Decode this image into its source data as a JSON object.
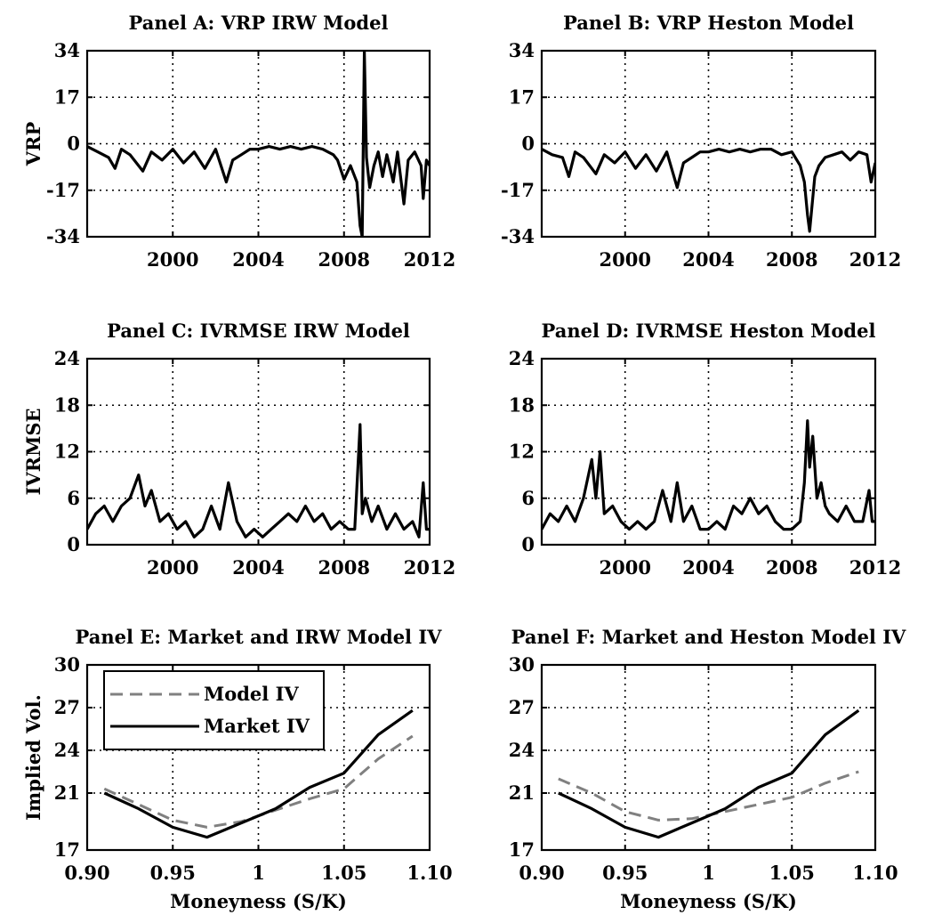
{
  "chart_data": [
    {
      "id": "A",
      "type": "line",
      "title": "Panel A: VRP IRW Model",
      "xlabel": "",
      "ylabel": "VRP",
      "xlim": [
        1996.0,
        2012.0
      ],
      "ylim": [
        -34,
        34
      ],
      "xticks": [
        2000,
        2004,
        2008,
        2012
      ],
      "xtick_labels": [
        "2000",
        "2004",
        "2008",
        "2012"
      ],
      "yticks": [
        -34,
        -17,
        0,
        17,
        34
      ],
      "ytick_labels": [
        "-34",
        "-17",
        "0",
        "17",
        "34"
      ],
      "grid": true,
      "legend": null,
      "series": [
        {
          "color": "#000000",
          "dash": "solid",
          "x": [
            1996.0,
            1996.5,
            1997.0,
            1997.3,
            1997.6,
            1998.0,
            1998.6,
            1999.0,
            1999.5,
            2000.0,
            2000.5,
            2001.0,
            2001.5,
            2002.0,
            2002.5,
            2002.8,
            2003.2,
            2003.6,
            2004.0,
            2004.5,
            2005.0,
            2005.5,
            2006.0,
            2006.5,
            2007.0,
            2007.5,
            2007.7,
            2008.0,
            2008.3,
            2008.6,
            2008.75,
            2008.85,
            2008.95,
            2009.05,
            2009.2,
            2009.4,
            2009.6,
            2009.8,
            2010.0,
            2010.3,
            2010.5,
            2010.8,
            2011.0,
            2011.3,
            2011.6,
            2011.7,
            2011.85,
            2012.0
          ],
          "y": [
            -1,
            -3,
            -5,
            -9,
            -2,
            -4,
            -10,
            -3,
            -6,
            -2,
            -7,
            -3,
            -9,
            -2,
            -14,
            -6,
            -4,
            -2,
            -2,
            -1,
            -2,
            -1,
            -2,
            -1,
            -2,
            -4,
            -6,
            -13,
            -8,
            -14,
            -30,
            -34,
            34,
            -5,
            -16,
            -8,
            -3,
            -12,
            -4,
            -14,
            -3,
            -22,
            -6,
            -3,
            -8,
            -20,
            -6,
            -8
          ]
        }
      ]
    },
    {
      "id": "B",
      "type": "line",
      "title": "Panel B: VRP Heston Model",
      "xlabel": "",
      "ylabel": "",
      "xlim": [
        1996.0,
        2012.0
      ],
      "ylim": [
        -34,
        34
      ],
      "xticks": [
        2000,
        2004,
        2008,
        2012
      ],
      "xtick_labels": [
        "2000",
        "2004",
        "2008",
        "2012"
      ],
      "yticks": [
        -34,
        -17,
        0,
        17,
        34
      ],
      "ytick_labels": [
        "-34",
        "-17",
        "0",
        "17",
        "34"
      ],
      "grid": true,
      "legend": null,
      "series": [
        {
          "color": "#000000",
          "dash": "solid",
          "x": [
            1996.0,
            1996.5,
            1997.0,
            1997.3,
            1997.6,
            1998.0,
            1998.6,
            1999.0,
            1999.5,
            2000.0,
            2000.5,
            2001.0,
            2001.5,
            2002.0,
            2002.5,
            2002.8,
            2003.2,
            2003.6,
            2004.0,
            2004.5,
            2005.0,
            2005.5,
            2006.0,
            2006.5,
            2007.0,
            2007.5,
            2008.0,
            2008.4,
            2008.6,
            2008.75,
            2008.85,
            2008.95,
            2009.1,
            2009.3,
            2009.6,
            2010.0,
            2010.4,
            2010.8,
            2011.2,
            2011.6,
            2011.8,
            2012.0
          ],
          "y": [
            -2,
            -4,
            -5,
            -12,
            -3,
            -5,
            -11,
            -4,
            -7,
            -3,
            -9,
            -4,
            -10,
            -3,
            -16,
            -7,
            -5,
            -3,
            -3,
            -2,
            -3,
            -2,
            -3,
            -2,
            -2,
            -4,
            -3,
            -8,
            -14,
            -26,
            -32,
            -24,
            -12,
            -8,
            -5,
            -4,
            -3,
            -6,
            -3,
            -4,
            -14,
            -7
          ]
        }
      ]
    },
    {
      "id": "C",
      "type": "line",
      "title": "Panel C: IVRMSE IRW Model",
      "xlabel": "",
      "ylabel": "IVRMSE",
      "xlim": [
        1996.0,
        2012.0
      ],
      "ylim": [
        0,
        24
      ],
      "xticks": [
        2000,
        2004,
        2008,
        2012
      ],
      "xtick_labels": [
        "2000",
        "2004",
        "2008",
        "2012"
      ],
      "yticks": [
        0,
        6,
        12,
        18,
        24
      ],
      "ytick_labels": [
        "0",
        "6",
        "12",
        "18",
        "24"
      ],
      "grid": true,
      "legend": null,
      "series": [
        {
          "color": "#000000",
          "dash": "solid",
          "x": [
            1996.0,
            1996.4,
            1996.8,
            1997.2,
            1997.6,
            1998.0,
            1998.4,
            1998.7,
            1999.0,
            1999.4,
            1999.8,
            2000.2,
            2000.6,
            2001.0,
            2001.4,
            2001.8,
            2002.2,
            2002.6,
            2003.0,
            2003.4,
            2003.8,
            2004.2,
            2004.6,
            2005.0,
            2005.4,
            2005.8,
            2006.2,
            2006.6,
            2007.0,
            2007.4,
            2007.8,
            2008.2,
            2008.5,
            2008.75,
            2008.85,
            2009.0,
            2009.3,
            2009.6,
            2010.0,
            2010.4,
            2010.8,
            2011.2,
            2011.5,
            2011.7,
            2011.85,
            2012.0
          ],
          "y": [
            2,
            4,
            5,
            3,
            5,
            6,
            9,
            5,
            7,
            3,
            4,
            2,
            3,
            1,
            2,
            5,
            2,
            8,
            3,
            1,
            2,
            1,
            2,
            3,
            4,
            3,
            5,
            3,
            4,
            2,
            3,
            2,
            2,
            15.5,
            4,
            6,
            3,
            5,
            2,
            4,
            2,
            3,
            1,
            8,
            2,
            2
          ]
        }
      ]
    },
    {
      "id": "D",
      "type": "line",
      "title": "Panel D: IVRMSE Heston Model",
      "xlabel": "",
      "ylabel": "",
      "xlim": [
        1996.0,
        2012.0
      ],
      "ylim": [
        0,
        24
      ],
      "xticks": [
        2000,
        2004,
        2008,
        2012
      ],
      "xtick_labels": [
        "2000",
        "2004",
        "2008",
        "2012"
      ],
      "yticks": [
        0,
        6,
        12,
        18,
        24
      ],
      "ytick_labels": [
        "0",
        "6",
        "12",
        "18",
        "24"
      ],
      "grid": true,
      "legend": null,
      "series": [
        {
          "color": "#000000",
          "dash": "solid",
          "x": [
            1996.0,
            1996.4,
            1996.8,
            1997.2,
            1997.6,
            1998.0,
            1998.4,
            1998.6,
            1998.8,
            1999.0,
            1999.4,
            1999.8,
            2000.2,
            2000.6,
            2001.0,
            2001.4,
            2001.8,
            2002.2,
            2002.5,
            2002.8,
            2003.2,
            2003.6,
            2004.0,
            2004.4,
            2004.8,
            2005.2,
            2005.6,
            2006.0,
            2006.4,
            2006.8,
            2007.2,
            2007.6,
            2008.0,
            2008.4,
            2008.6,
            2008.75,
            2008.85,
            2009.0,
            2009.2,
            2009.4,
            2009.6,
            2009.8,
            2010.2,
            2010.6,
            2011.0,
            2011.4,
            2011.7,
            2011.85,
            2012.0
          ],
          "y": [
            2,
            4,
            3,
            5,
            3,
            6,
            11,
            6,
            12,
            4,
            5,
            3,
            2,
            3,
            2,
            3,
            7,
            3,
            8,
            3,
            5,
            2,
            2,
            3,
            2,
            5,
            4,
            6,
            4,
            5,
            3,
            2,
            2,
            3,
            8,
            16,
            10,
            14,
            6,
            8,
            5,
            4,
            3,
            5,
            3,
            3,
            7,
            3,
            3
          ]
        }
      ]
    },
    {
      "id": "E",
      "type": "line",
      "title": "Panel E: Market and IRW Model IV",
      "xlabel": "Moneyness (S/K)",
      "ylabel": "Implied Vol.",
      "xlim": [
        0.9,
        1.1
      ],
      "ylim": [
        17,
        30
      ],
      "xticks": [
        0.9,
        0.95,
        1.0,
        1.05,
        1.1
      ],
      "xtick_labels": [
        "0.90",
        "0.95",
        "1",
        "1.05",
        "1.10"
      ],
      "yticks": [
        17,
        21,
        24,
        27,
        30
      ],
      "ytick_labels": [
        "17",
        "21",
        "24",
        "27",
        "30"
      ],
      "grid": true,
      "legend": "top-left",
      "series": [
        {
          "name": "Model IV",
          "color": "#808080",
          "dash": "dashed",
          "x": [
            0.91,
            0.93,
            0.95,
            0.97,
            0.99,
            1.01,
            1.03,
            1.05,
            1.07,
            1.09
          ],
          "y": [
            21.3,
            20.2,
            19.1,
            18.6,
            19.0,
            19.8,
            20.6,
            21.3,
            23.4,
            25.0
          ]
        },
        {
          "name": "Market IV",
          "color": "#000000",
          "dash": "solid",
          "x": [
            0.91,
            0.93,
            0.95,
            0.97,
            0.99,
            1.01,
            1.03,
            1.05,
            1.07,
            1.09
          ],
          "y": [
            21.0,
            19.9,
            18.6,
            17.9,
            18.9,
            19.9,
            21.4,
            22.4,
            25.1,
            26.8
          ]
        }
      ]
    },
    {
      "id": "F",
      "type": "line",
      "title": "Panel F: Market and Heston Model IV",
      "xlabel": "Moneyness (S/K)",
      "ylabel": "",
      "xlim": [
        0.9,
        1.1
      ],
      "ylim": [
        17,
        30
      ],
      "xticks": [
        0.9,
        0.95,
        1.0,
        1.05,
        1.1
      ],
      "xtick_labels": [
        "0.90",
        "0.95",
        "1",
        "1.05",
        "1.10"
      ],
      "yticks": [
        17,
        21,
        24,
        27,
        30
      ],
      "ytick_labels": [
        "17",
        "21",
        "24",
        "27",
        "30"
      ],
      "grid": true,
      "legend": null,
      "series": [
        {
          "name": "Model IV",
          "color": "#808080",
          "dash": "dashed",
          "x": [
            0.91,
            0.93,
            0.95,
            0.97,
            0.99,
            1.01,
            1.03,
            1.05,
            1.07,
            1.09
          ],
          "y": [
            22.0,
            21.0,
            19.7,
            19.1,
            19.2,
            19.7,
            20.2,
            20.7,
            21.7,
            22.5
          ]
        },
        {
          "name": "Market IV",
          "color": "#000000",
          "dash": "solid",
          "x": [
            0.91,
            0.93,
            0.95,
            0.97,
            0.99,
            1.01,
            1.03,
            1.05,
            1.07,
            1.09
          ],
          "y": [
            21.0,
            19.9,
            18.6,
            17.9,
            18.9,
            19.9,
            21.4,
            22.4,
            25.1,
            26.8
          ]
        }
      ]
    }
  ]
}
